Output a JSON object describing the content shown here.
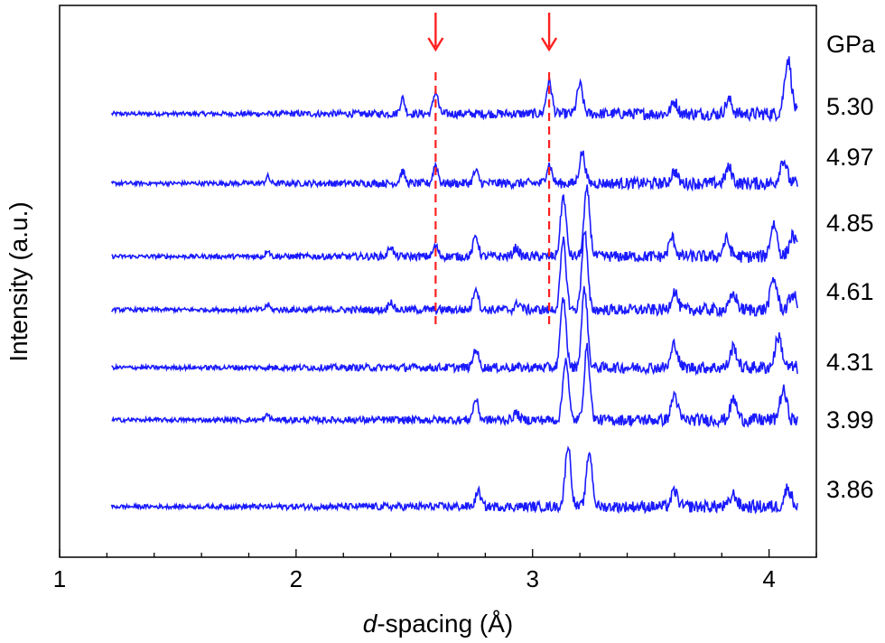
{
  "chart_data": {
    "type": "line",
    "xlabel_italic": "d",
    "xlabel_rest": "-spacing (Å)",
    "ylabel": "Intensity (a.u.)",
    "xlim": [
      1.0,
      4.2
    ],
    "x_ticks": [
      1,
      2,
      3,
      4
    ],
    "x_tick_labels": [
      "1",
      "2",
      "3",
      "4"
    ],
    "y_ticks_shown": false,
    "unit_label": "GPa",
    "line_color": "#1a1aff",
    "marker_color": "#ff2020",
    "series": [
      {
        "name": "5.30",
        "peaks": [
          [
            2.45,
            0.45
          ],
          [
            2.59,
            0.65
          ],
          [
            3.07,
            0.95
          ],
          [
            3.2,
            0.85
          ],
          [
            3.6,
            0.35
          ],
          [
            3.83,
            0.4
          ],
          [
            4.08,
            1.6
          ]
        ]
      },
      {
        "name": "4.97",
        "peaks": [
          [
            1.88,
            0.2
          ],
          [
            2.45,
            0.35
          ],
          [
            2.59,
            0.55
          ],
          [
            2.76,
            0.35
          ],
          [
            3.07,
            0.55
          ],
          [
            3.21,
            0.9
          ],
          [
            3.6,
            0.35
          ],
          [
            3.83,
            0.45
          ],
          [
            4.06,
            0.7
          ]
        ]
      },
      {
        "name": "4.85",
        "peaks": [
          [
            1.88,
            0.2
          ],
          [
            2.4,
            0.3
          ],
          [
            2.59,
            0.3
          ],
          [
            2.76,
            0.6
          ],
          [
            2.93,
            0.25
          ],
          [
            3.13,
            1.75
          ],
          [
            3.23,
            1.95
          ],
          [
            3.59,
            0.55
          ],
          [
            3.82,
            0.5
          ],
          [
            4.02,
            0.95
          ],
          [
            4.1,
            0.6
          ]
        ]
      },
      {
        "name": "4.61",
        "peaks": [
          [
            1.88,
            0.15
          ],
          [
            2.4,
            0.25
          ],
          [
            2.76,
            0.65
          ],
          [
            2.94,
            0.2
          ],
          [
            3.13,
            2.0
          ],
          [
            3.22,
            2.3
          ],
          [
            3.6,
            0.55
          ],
          [
            3.85,
            0.45
          ],
          [
            4.02,
            0.9
          ],
          [
            4.1,
            0.45
          ]
        ]
      },
      {
        "name": "4.31",
        "peaks": [
          [
            2.76,
            0.55
          ],
          [
            3.13,
            2.0
          ],
          [
            3.22,
            2.3
          ],
          [
            3.6,
            0.7
          ],
          [
            3.85,
            0.6
          ],
          [
            4.04,
            0.9
          ]
        ]
      },
      {
        "name": "3.99",
        "peaks": [
          [
            1.88,
            0.15
          ],
          [
            2.76,
            0.6
          ],
          [
            2.93,
            0.2
          ],
          [
            3.14,
            1.8
          ],
          [
            3.23,
            2.1
          ],
          [
            3.6,
            0.75
          ],
          [
            3.85,
            0.6
          ],
          [
            4.06,
            0.85
          ]
        ]
      },
      {
        "name": "3.86",
        "peaks": [
          [
            2.77,
            0.45
          ],
          [
            3.15,
            1.8
          ],
          [
            3.24,
            1.6
          ],
          [
            3.6,
            0.45
          ],
          [
            3.85,
            0.35
          ],
          [
            4.08,
            0.55
          ]
        ]
      }
    ],
    "markers": [
      {
        "x": 2.59,
        "from_series": "5.30",
        "to_series": "4.61"
      },
      {
        "x": 3.07,
        "from_series": "5.30",
        "to_series": "4.61"
      }
    ],
    "grid": false,
    "legend": "series names listed at right"
  }
}
